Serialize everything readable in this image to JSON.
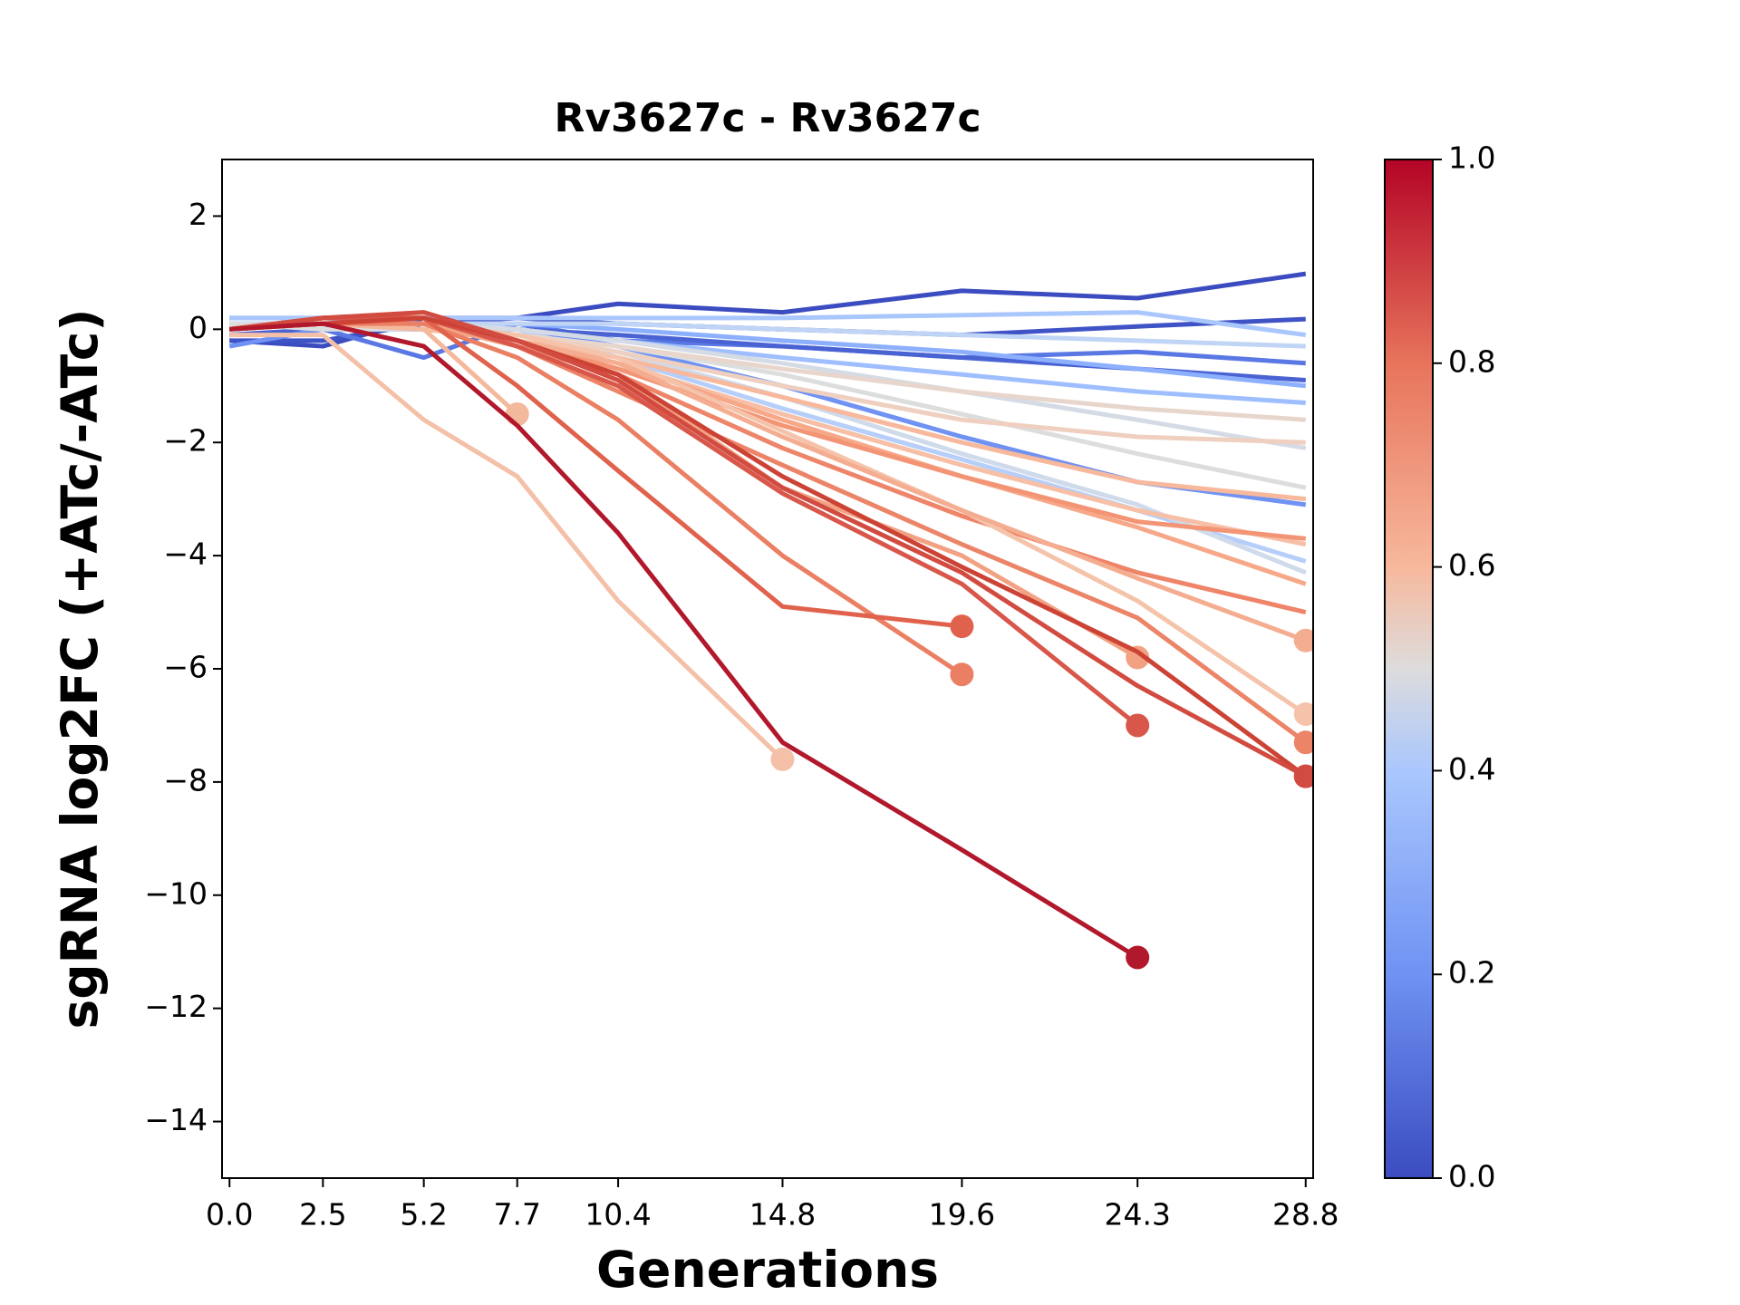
{
  "chart_data": {
    "type": "line",
    "title": "Rv3627c - Rv3627c",
    "xlabel": "Generations",
    "ylabel": "sgRNA log2FC (+ATc/-ATc)",
    "x": [
      0,
      2.5,
      5.2,
      7.7,
      10.4,
      14.8,
      19.6,
      24.3,
      28.8
    ],
    "xlim": [
      -0.2,
      29.0
    ],
    "xticks": [
      {
        "value": 0,
        "label": "0.0"
      },
      2.5,
      5.2,
      7.7,
      10.4,
      14.8,
      19.6,
      24.3,
      28.8
    ],
    "ylim": [
      -15,
      3
    ],
    "yticks": [
      {
        "value": -14,
        "label": "−14"
      },
      {
        "value": -12,
        "label": "−12"
      },
      {
        "value": -10,
        "label": "−10"
      },
      {
        "value": -8,
        "label": "−8"
      },
      {
        "value": -6,
        "label": "−6"
      },
      {
        "value": -4,
        "label": "−4"
      },
      {
        "value": -2,
        "label": "−2"
      },
      0,
      2
    ],
    "colorbar": {
      "colormap": "coolwarm",
      "lim": [
        0,
        1
      ],
      "ticks": [
        {
          "value": 0,
          "label": "0.0"
        },
        0.2,
        0.4,
        0.6,
        0.8,
        {
          "value": 1,
          "label": "1.0"
        }
      ]
    },
    "series": [
      {
        "color": "#3b4cc0",
        "values": [
          -0.2,
          -0.3,
          0.2,
          0.2,
          0.45,
          0.3,
          0.68,
          0.55,
          0.98
        ]
      },
      {
        "color": "#3f53c6",
        "values": [
          -0.2,
          -0.2,
          0.1,
          0.2,
          0.1,
          0.0,
          -0.1,
          0.05,
          0.18
        ]
      },
      {
        "color": "#5a78e4",
        "values": [
          -0.1,
          0.0,
          -0.5,
          0.1,
          -0.2,
          -0.3,
          -0.5,
          -0.4,
          -0.6
        ]
      },
      {
        "color": "#4a63d3",
        "values": [
          -0.1,
          0.0,
          0.0,
          0.0,
          -0.1,
          -0.3,
          -0.5,
          -0.7,
          -0.9
        ]
      },
      {
        "color": "#6f92f3",
        "values": [
          -0.3,
          0.0,
          0.1,
          0.0,
          -0.3,
          -1.0,
          -1.9,
          -2.7,
          -3.1
        ]
      },
      {
        "color": "#8caffe",
        "values": [
          0.2,
          0.2,
          0.1,
          0.1,
          0.0,
          -0.2,
          -0.4,
          -0.7,
          -1.0
        ]
      },
      {
        "color": "#9ebeff",
        "values": [
          0.1,
          0.1,
          0.1,
          0.0,
          -0.2,
          -0.5,
          -0.8,
          -1.1,
          -1.3
        ]
      },
      {
        "color": "#aac7fd",
        "values": [
          0.2,
          0.2,
          0.2,
          0.2,
          0.2,
          0.2,
          0.25,
          0.3,
          -0.1
        ]
      },
      {
        "color": "#b6cefa",
        "values": [
          0.1,
          0.1,
          0.0,
          0.0,
          -0.5,
          -1.4,
          -2.3,
          -3.2,
          -4.1
        ]
      },
      {
        "color": "#c0d4f5",
        "values": [
          0.0,
          0.1,
          0.1,
          0.1,
          0.1,
          0.0,
          -0.1,
          -0.2,
          -0.3
        ]
      },
      {
        "color": "#cfdaea",
        "values": [
          0.1,
          0.1,
          0.0,
          -0.1,
          -0.4,
          -1.2,
          -2.2,
          -3.1,
          -4.3
        ]
      },
      {
        "color": "#d5dbe5",
        "values": [
          0.0,
          0.1,
          0.1,
          0.0,
          -0.2,
          -0.6,
          -1.1,
          -1.6,
          -2.1
        ]
      },
      {
        "color": "#dcdddd",
        "values": [
          0.1,
          0.0,
          0.0,
          -0.1,
          -0.3,
          -0.8,
          -1.5,
          -2.2,
          -2.8
        ]
      },
      {
        "color": "#e8d6cc",
        "values": [
          0.0,
          0.1,
          0.0,
          -0.1,
          -0.3,
          -0.7,
          -1.1,
          -1.4,
          -1.6
        ]
      },
      {
        "color": "#efcfbf",
        "values": [
          0.0,
          0.1,
          0.0,
          -0.1,
          -0.4,
          -1.0,
          -1.6,
          -1.9,
          -2.0
        ]
      },
      {
        "color": "#f6bfa6",
        "values": [
          0.0,
          0.1,
          0.1,
          -0.2,
          -0.6,
          -1.5,
          -2.4,
          -3.2,
          -3.8
        ]
      },
      {
        "color": "#f7b89c",
        "values": [
          0.0,
          0.1,
          0.0,
          -0.2,
          -0.5,
          -1.2,
          -2.0,
          -2.7,
          -3.0
        ]
      },
      {
        "color": "#f7a889",
        "values": [
          0.0,
          0.1,
          0.1,
          -0.2,
          -0.6,
          -1.6,
          -2.6,
          -3.5,
          -4.5
        ]
      },
      {
        "color": "#f39475",
        "values": [
          0.0,
          0.2,
          0.2,
          -0.2,
          -0.7,
          -1.7,
          -2.6,
          -3.4,
          -3.7
        ]
      },
      {
        "color": "#ee8468",
        "values": [
          0.0,
          0.2,
          0.2,
          -0.2,
          -0.8,
          -2.1,
          -3.3,
          -4.3,
          -5.0
        ]
      },
      {
        "color": "#f5c3aa",
        "end_marker": true,
        "values": [
          0.0,
          0.1,
          0.1,
          -0.1,
          -0.5,
          -1.8,
          -3.2,
          -4.8,
          -6.8
        ]
      },
      {
        "color": "#f4ad90",
        "end_marker": true,
        "values": [
          0.0,
          0.1,
          0.1,
          -0.2,
          -0.6,
          -1.9,
          -3.2,
          -4.4,
          -5.5
        ]
      },
      {
        "color": "#ec8467",
        "end_marker": true,
        "values": [
          0.0,
          0.2,
          0.2,
          -0.3,
          -1.1,
          -2.4,
          -3.8,
          -5.1,
          -7.3
        ]
      },
      {
        "color": "#f2a283",
        "end_marker": true,
        "values": [
          0.0,
          0.1,
          0.1,
          -0.3,
          -0.8,
          -2.8,
          -4.0,
          -5.8,
          null
        ]
      },
      {
        "color": "#f4b89c",
        "end_marker": true,
        "values": [
          0.0,
          0.1,
          0.0,
          -1.5,
          null,
          null,
          null,
          null,
          null
        ]
      },
      {
        "color": "#f4c0a8",
        "end_marker": true,
        "values": [
          -0.1,
          -0.1,
          -1.6,
          -2.6,
          -4.8,
          -7.6,
          null,
          null,
          null
        ]
      },
      {
        "color": "#eb7f63",
        "end_marker": true,
        "values": [
          0.0,
          0.1,
          0.1,
          -0.5,
          -1.6,
          -4.0,
          -6.1,
          null,
          null
        ]
      },
      {
        "color": "#e0624d",
        "end_marker": true,
        "values": [
          0.0,
          0.2,
          0.2,
          -1.0,
          -2.5,
          -4.9,
          -5.25,
          null,
          null
        ]
      },
      {
        "color": "#d8574a",
        "end_marker": true,
        "values": [
          0.0,
          0.2,
          0.2,
          -0.3,
          -1.0,
          -2.9,
          -4.5,
          -7.0,
          null
        ]
      },
      {
        "color": "#cc4335",
        "end_marker": true,
        "values": [
          0.0,
          0.1,
          0.2,
          -0.2,
          -0.8,
          -2.6,
          -4.2,
          -5.7,
          -7.9
        ]
      },
      {
        "color": "#d24b40",
        "end_marker": true,
        "values": [
          0.0,
          0.2,
          0.3,
          -0.2,
          -0.9,
          -2.8,
          -4.3,
          -6.3,
          -7.9
        ]
      },
      {
        "color": "#b2182b",
        "end_marker": true,
        "values": [
          0.0,
          0.1,
          -0.3,
          -1.7,
          -3.6,
          -7.3,
          -9.2,
          -11.1,
          null
        ]
      }
    ]
  }
}
